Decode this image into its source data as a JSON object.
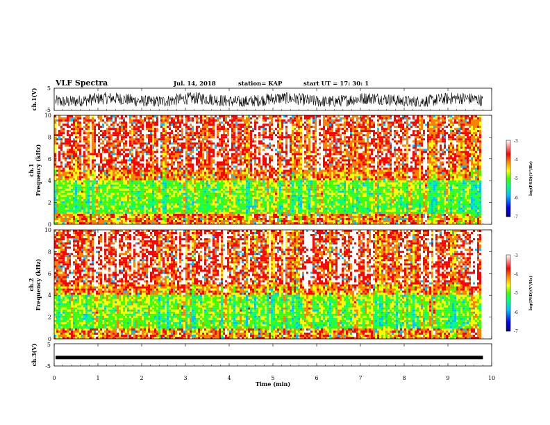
{
  "header": {
    "title": "VLF Spectra",
    "date": "Jul. 14, 2018",
    "station": "station= KAP",
    "start": "start UT = 17: 30: 1"
  },
  "chart_data": [
    {
      "type": "line",
      "name": "ch1-waveform",
      "ylabel": "ch.1(V)",
      "ylim": [
        -5,
        5
      ],
      "yticks": [
        "5",
        "-5"
      ],
      "xlim": [
        0,
        10
      ],
      "note_values": "dense noisy waveform between about -3 and 4 V, data ends near 9.8 min"
    },
    {
      "type": "heatmap",
      "name": "ch1-spectrogram",
      "ylabel": "ch.1 Frequency (kHz)",
      "ylim": [
        0,
        10
      ],
      "yticks": [
        "0",
        "2",
        "4",
        "6",
        "8",
        "10"
      ],
      "xlim": [
        0,
        9.8
      ],
      "colorbar": {
        "label": "log(PSD)(V²/Hz)",
        "min": -7,
        "max": -3,
        "ticks": [
          "-3",
          "-4",
          "-5",
          "-6",
          "-7"
        ]
      }
    },
    {
      "type": "heatmap",
      "name": "ch2-spectrogram",
      "ylabel": "ch.2 Frequency (kHz)",
      "ylim": [
        0,
        10
      ],
      "yticks": [
        "0",
        "2",
        "4",
        "6",
        "8",
        "10"
      ],
      "xlim": [
        0,
        9.8
      ],
      "colorbar": {
        "label": "log(PSD)(V²/Hz)",
        "min": -7,
        "max": -3,
        "ticks": [
          "-3",
          "-4",
          "-5",
          "-6",
          "-7"
        ]
      }
    },
    {
      "type": "line",
      "name": "ch3-waveform",
      "ylabel": "ch.3(V)",
      "ylim": [
        -5,
        5
      ],
      "yticks": [
        "5",
        "-5"
      ],
      "xlim": [
        0,
        10
      ],
      "values_constant": -1.2
    }
  ],
  "xaxis": {
    "label": "Time (min)",
    "ticks": [
      "0",
      "1",
      "2",
      "3",
      "4",
      "5",
      "6",
      "7",
      "8",
      "9",
      "10"
    ],
    "range": [
      0,
      10
    ]
  },
  "palette": [
    "#000080",
    "#0000ff",
    "#00c0ff",
    "#00ff80",
    "#40ff00",
    "#ffff00",
    "#ff8000",
    "#ff0000",
    "#ffffff"
  ]
}
